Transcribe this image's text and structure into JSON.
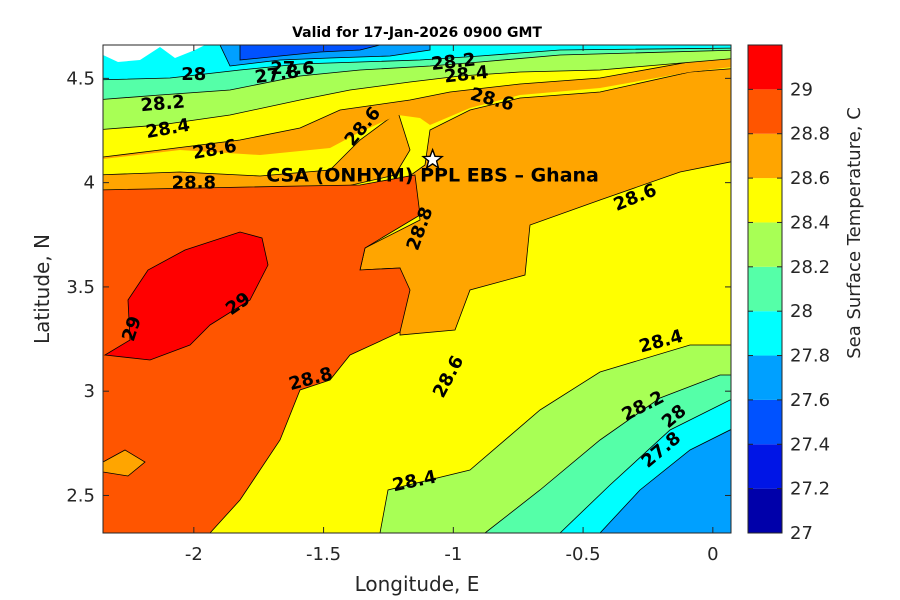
{
  "chart_data": {
    "type": "contour",
    "title": "Valid for 17-Jan-2026 0900 GMT",
    "xlabel": "Longitude, E",
    "ylabel": "Latitude, N",
    "xlim": [
      -2.35,
      0.07
    ],
    "ylim": [
      2.32,
      4.66
    ],
    "xticks": [
      -2,
      -1.5,
      -1,
      -0.5,
      0
    ],
    "xtick_labels": [
      "-2",
      "-1.5",
      "-1",
      "-0.5",
      "0"
    ],
    "yticks": [
      2.5,
      3,
      3.5,
      4,
      4.5
    ],
    "ytick_labels": [
      "2.5",
      "3",
      "3.5",
      "4",
      "4.5"
    ],
    "colorbar": {
      "label": "Sea Surface Temperature, C",
      "range": [
        27,
        29.2
      ],
      "ticks": [
        27,
        27.2,
        27.4,
        27.6,
        27.8,
        28,
        28.2,
        28.4,
        28.6,
        28.8,
        29
      ],
      "tick_labels": [
        "27",
        "27.2",
        "27.4",
        "27.6",
        "27.8",
        "28",
        "28.2",
        "28.4",
        "28.6",
        "28.8",
        "29"
      ],
      "colors": [
        "#0000aa",
        "#0015e6",
        "#0052ff",
        "#00a0ff",
        "#00ffff",
        "#55ffa8",
        "#a8ff55",
        "#ffff00",
        "#ffa500",
        "#ff5500",
        "#ff0000"
      ]
    },
    "contour_levels": [
      27.6,
      27.8,
      28,
      28.2,
      28.4,
      28.6,
      28.8,
      29
    ],
    "contour_labels": [
      {
        "text": "28.2",
        "lon": -1.0,
        "lat": 4.58,
        "angle": -6
      },
      {
        "text": "28.4",
        "lon": -0.95,
        "lat": 4.52,
        "angle": -6
      },
      {
        "text": "28",
        "lon": -2.0,
        "lat": 4.52,
        "angle": 0
      },
      {
        "text": "27.8",
        "lon": -1.68,
        "lat": 4.52,
        "angle": -8
      },
      {
        "text": "27.6",
        "lon": -1.62,
        "lat": 4.55,
        "angle": 0
      },
      {
        "text": "28.6",
        "lon": -0.85,
        "lat": 4.4,
        "angle": 15
      },
      {
        "text": "28.2",
        "lon": -2.12,
        "lat": 4.38,
        "angle": -5
      },
      {
        "text": "28.4",
        "lon": -2.1,
        "lat": 4.26,
        "angle": -10
      },
      {
        "text": "28.6",
        "lon": -1.35,
        "lat": 4.27,
        "angle": -50
      },
      {
        "text": "28.6",
        "lon": -1.92,
        "lat": 4.16,
        "angle": -10
      },
      {
        "text": "28.8",
        "lon": -2.0,
        "lat": 4.0,
        "angle": 0
      },
      {
        "text": "28.8",
        "lon": -1.13,
        "lat": 3.78,
        "angle": -70
      },
      {
        "text": "28.6",
        "lon": -0.3,
        "lat": 3.93,
        "angle": -22
      },
      {
        "text": "29",
        "lon": -1.83,
        "lat": 3.42,
        "angle": -35
      },
      {
        "text": "29",
        "lon": -2.24,
        "lat": 3.3,
        "angle": -72
      },
      {
        "text": "28.8",
        "lon": -1.55,
        "lat": 3.06,
        "angle": -15
      },
      {
        "text": "28.6",
        "lon": -1.02,
        "lat": 3.07,
        "angle": -62
      },
      {
        "text": "28.4",
        "lon": -0.2,
        "lat": 3.24,
        "angle": -15
      },
      {
        "text": "28.2",
        "lon": -0.27,
        "lat": 2.93,
        "angle": -27
      },
      {
        "text": "28",
        "lon": -0.15,
        "lat": 2.88,
        "angle": -40
      },
      {
        "text": "27.8",
        "lon": -0.2,
        "lat": 2.72,
        "angle": -40
      },
      {
        "text": "28.4",
        "lon": -1.15,
        "lat": 2.57,
        "angle": -12
      }
    ],
    "site": {
      "name": "CSA (ONHYM) PPL EBS  – Ghana",
      "lon": -1.08,
      "lat": 4.11,
      "marker": "star"
    }
  }
}
